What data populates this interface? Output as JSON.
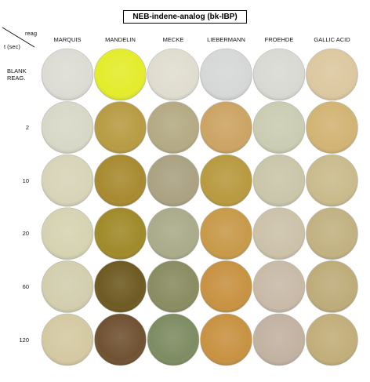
{
  "title": "NEB-indene-analog (bk-IBP)",
  "corner": {
    "column_header": "reag",
    "row_header": "t (sec)"
  },
  "columns": [
    "MARQUIS",
    "MANDELIN",
    "MECKE",
    "LIEBERMANN",
    "FROEHDE",
    "GALLIC ACID"
  ],
  "rows": [
    "BLANK REAG.",
    "2",
    "10",
    "20",
    "60",
    "120"
  ]
}
